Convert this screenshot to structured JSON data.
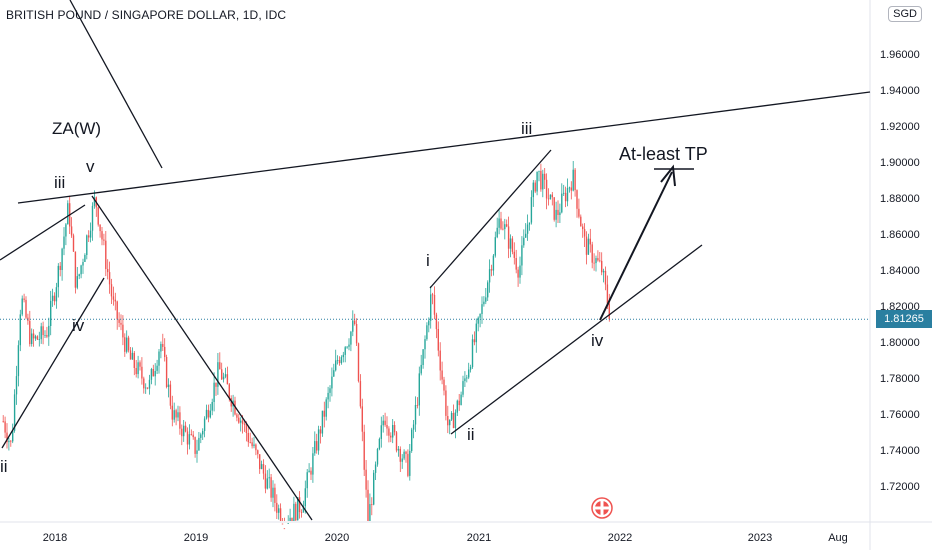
{
  "header": {
    "symbol_title": "BRITISH POUND / SINGAPORE DOLLAR, 1D, IDC",
    "currency": "SGD"
  },
  "price_axis": {
    "ticks": [
      "1.96000",
      "1.94000",
      "1.92000",
      "1.90000",
      "1.88000",
      "1.86000",
      "1.84000",
      "1.82000",
      "1.80000",
      "1.78000",
      "1.76000",
      "1.74000",
      "1.72000"
    ],
    "current_price": "1.81265",
    "current_color": "#2a7fa0"
  },
  "time_axis": {
    "ticks": [
      "2018",
      "2019",
      "2020",
      "2021",
      "2022",
      "2023",
      "Aug"
    ]
  },
  "annotations": {
    "za_w": "ZA(W)",
    "left_iii": "iii",
    "left_v": "v",
    "left_iv": "iv",
    "left_ii": "ii",
    "right_i": "i",
    "right_ii": "ii",
    "right_iii": "iii",
    "right_iv": "iv",
    "target": "At-least TP"
  },
  "colors": {
    "up": "#26a69a",
    "down": "#ef5350",
    "line": "#131722",
    "grid_line": "#2a7fa0"
  },
  "chart_data": {
    "type": "candlestick",
    "title": "BRITISH POUND / SINGAPORE DOLLAR, 1D, IDC",
    "ylim": [
      1.7,
      1.97
    ],
    "y_unit": "SGD",
    "x_ticks": [
      "2018",
      "2019",
      "2020",
      "2021",
      "2022",
      "2023",
      "Aug"
    ],
    "last_price": 1.81265,
    "price_path": [
      {
        "x": "2017-08-20",
        "y": 1.756
      },
      {
        "x": "2017-09-10",
        "y": 1.742
      },
      {
        "x": "2017-10-05",
        "y": 1.825
      },
      {
        "x": "2017-11-01",
        "y": 1.8
      },
      {
        "x": "2017-12-10",
        "y": 1.805
      },
      {
        "x": "2018-01-10",
        "y": 1.84
      },
      {
        "x": "2018-02-05",
        "y": 1.875
      },
      {
        "x": "2018-02-25",
        "y": 1.83
      },
      {
        "x": "2018-04-15",
        "y": 1.88
      },
      {
        "x": "2018-06-01",
        "y": 1.82
      },
      {
        "x": "2018-07-15",
        "y": 1.79
      },
      {
        "x": "2018-09-01",
        "y": 1.775
      },
      {
        "x": "2018-10-01",
        "y": 1.8
      },
      {
        "x": "2018-11-01",
        "y": 1.76
      },
      {
        "x": "2019-01-01",
        "y": 1.74
      },
      {
        "x": "2019-03-01",
        "y": 1.785
      },
      {
        "x": "2019-05-01",
        "y": 1.755
      },
      {
        "x": "2019-08-15",
        "y": 1.7
      },
      {
        "x": "2019-10-01",
        "y": 1.71
      },
      {
        "x": "2020-01-01",
        "y": 1.79
      },
      {
        "x": "2020-02-15",
        "y": 1.81
      },
      {
        "x": "2020-03-20",
        "y": 1.7
      },
      {
        "x": "2020-05-01",
        "y": 1.76
      },
      {
        "x": "2020-07-01",
        "y": 1.73
      },
      {
        "x": "2020-09-01",
        "y": 1.828
      },
      {
        "x": "2020-10-15",
        "y": 1.75
      },
      {
        "x": "2020-11-15",
        "y": 1.77
      },
      {
        "x": "2021-01-01",
        "y": 1.81
      },
      {
        "x": "2021-02-25",
        "y": 1.87
      },
      {
        "x": "2021-04-15",
        "y": 1.84
      },
      {
        "x": "2021-06-01",
        "y": 1.895
      },
      {
        "x": "2021-07-20",
        "y": 1.87
      },
      {
        "x": "2021-09-01",
        "y": 1.892
      },
      {
        "x": "2021-10-01",
        "y": 1.855
      },
      {
        "x": "2021-11-15",
        "y": 1.84
      },
      {
        "x": "2021-12-08",
        "y": 1.8127
      }
    ],
    "markings": {
      "target_price": 1.895,
      "target_label": "At-least TP"
    }
  }
}
